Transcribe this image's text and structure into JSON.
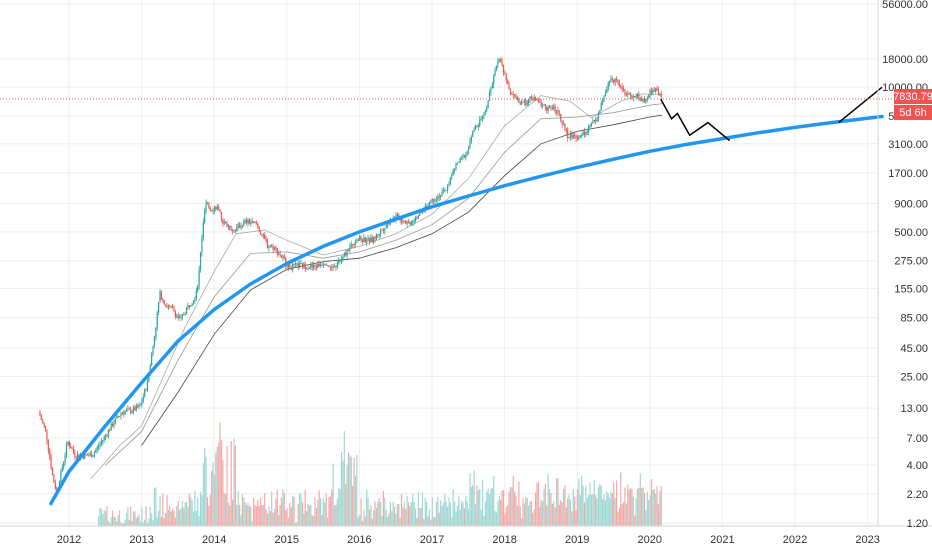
{
  "chart_data": {
    "type": "candlestick",
    "y_scale": "log",
    "grid": true,
    "ylim": [
      1.0,
      56000.0
    ],
    "y_ticks": [
      "56000.00",
      "18000.00",
      "10000.00",
      "5500.00",
      "3100.00",
      "1700.00",
      "900.00",
      "500.00",
      "275.00",
      "155.00",
      "85.00",
      "45.00",
      "25.00",
      "13.00",
      "7.00",
      "4.00",
      "2.20",
      "1.20"
    ],
    "x_ticks": [
      "2012",
      "2013",
      "2014",
      "2015",
      "2016",
      "2017",
      "2018",
      "2019",
      "2020",
      "2021",
      "2022",
      "2023"
    ],
    "price_label": "7830.79",
    "countdown_label": "5d 6h",
    "current_price": 7830.79,
    "colors": {
      "up": "#26a69a",
      "down": "#ef5350",
      "trend": "#2196f3",
      "projection": "#000000",
      "ma": "#888888",
      "price_line": "#ef5350"
    },
    "price_path": [
      [
        2011.6,
        12
      ],
      [
        2011.7,
        8
      ],
      [
        2011.8,
        3
      ],
      [
        2011.85,
        2.3
      ],
      [
        2011.95,
        4.5
      ],
      [
        2012.0,
        6.5
      ],
      [
        2012.1,
        5
      ],
      [
        2012.2,
        4.8
      ],
      [
        2012.35,
        5
      ],
      [
        2012.5,
        7
      ],
      [
        2012.65,
        10
      ],
      [
        2012.75,
        12
      ],
      [
        2012.9,
        12.5
      ],
      [
        2013.0,
        13.5
      ],
      [
        2013.1,
        22
      ],
      [
        2013.2,
        60
      ],
      [
        2013.27,
        140
      ],
      [
        2013.35,
        110
      ],
      [
        2013.45,
        100
      ],
      [
        2013.55,
        80
      ],
      [
        2013.65,
        105
      ],
      [
        2013.75,
        130
      ],
      [
        2013.8,
        180
      ],
      [
        2013.85,
        450
      ],
      [
        2013.9,
        900
      ],
      [
        2013.97,
        800
      ],
      [
        2014.05,
        850
      ],
      [
        2014.15,
        600
      ],
      [
        2014.3,
        520
      ],
      [
        2014.45,
        620
      ],
      [
        2014.6,
        590
      ],
      [
        2014.75,
        380
      ],
      [
        2014.85,
        360
      ],
      [
        2014.95,
        300
      ],
      [
        2015.05,
        240
      ],
      [
        2015.2,
        250
      ],
      [
        2015.4,
        240
      ],
      [
        2015.55,
        270
      ],
      [
        2015.65,
        230
      ],
      [
        2015.8,
        300
      ],
      [
        2015.9,
        380
      ],
      [
        2016.0,
        430
      ],
      [
        2016.2,
        420
      ],
      [
        2016.45,
        650
      ],
      [
        2016.55,
        680
      ],
      [
        2016.7,
        600
      ],
      [
        2016.85,
        730
      ],
      [
        2017.0,
        950
      ],
      [
        2017.2,
        1150
      ],
      [
        2017.35,
        2000
      ],
      [
        2017.5,
        2600
      ],
      [
        2017.6,
        4200
      ],
      [
        2017.75,
        5800
      ],
      [
        2017.85,
        11000
      ],
      [
        2017.95,
        19000
      ],
      [
        2018.0,
        14000
      ],
      [
        2018.1,
        9000
      ],
      [
        2018.25,
        7000
      ],
      [
        2018.4,
        8000
      ],
      [
        2018.6,
        6500
      ],
      [
        2018.75,
        6300
      ],
      [
        2018.88,
        3700
      ],
      [
        2019.0,
        3600
      ],
      [
        2019.15,
        4000
      ],
      [
        2019.3,
        5500
      ],
      [
        2019.45,
        11000
      ],
      [
        2019.55,
        12000
      ],
      [
        2019.7,
        8500
      ],
      [
        2019.85,
        8300
      ],
      [
        2019.95,
        7300
      ],
      [
        2020.05,
        9600
      ],
      [
        2020.12,
        9800
      ],
      [
        2020.17,
        7830.79
      ]
    ],
    "trend_curve": [
      [
        2011.75,
        1.8
      ],
      [
        2012.0,
        3.5
      ],
      [
        2012.5,
        9
      ],
      [
        2013.0,
        22
      ],
      [
        2013.5,
        52
      ],
      [
        2014.0,
        100
      ],
      [
        2014.5,
        170
      ],
      [
        2015.0,
        260
      ],
      [
        2015.5,
        370
      ],
      [
        2016.0,
        500
      ],
      [
        2016.5,
        650
      ],
      [
        2017.0,
        840
      ],
      [
        2017.5,
        1050
      ],
      [
        2018.0,
        1300
      ],
      [
        2018.5,
        1580
      ],
      [
        2019.0,
        1900
      ],
      [
        2019.5,
        2250
      ],
      [
        2020.0,
        2650
      ],
      [
        2020.5,
        3050
      ],
      [
        2021.0,
        3450
      ],
      [
        2021.5,
        3900
      ],
      [
        2022.0,
        4350
      ],
      [
        2022.5,
        4800
      ],
      [
        2023.0,
        5250
      ],
      [
        2023.2,
        5450
      ]
    ],
    "projection": [
      [
        2020.15,
        7830
      ],
      [
        2020.3,
        5200
      ],
      [
        2020.38,
        5800
      ],
      [
        2020.55,
        3700
      ],
      [
        2020.8,
        4800
      ],
      [
        2021.1,
        3300
      ]
    ],
    "projection_2": [
      [
        2022.6,
        4800
      ],
      [
        2023.2,
        10000
      ]
    ],
    "ma_fast": [
      [
        2012.3,
        3
      ],
      [
        2012.7,
        6
      ],
      [
        2013.0,
        9
      ],
      [
        2013.3,
        25
      ],
      [
        2013.6,
        70
      ],
      [
        2014.0,
        220
      ],
      [
        2014.3,
        480
      ],
      [
        2014.7,
        520
      ],
      [
        2015.0,
        420
      ],
      [
        2015.5,
        310
      ],
      [
        2016.0,
        370
      ],
      [
        2016.5,
        480
      ],
      [
        2017.0,
        720
      ],
      [
        2017.5,
        1500
      ],
      [
        2018.0,
        4500
      ],
      [
        2018.5,
        8400
      ],
      [
        2018.9,
        7500
      ],
      [
        2019.2,
        5300
      ],
      [
        2019.6,
        7500
      ],
      [
        2019.9,
        8700
      ],
      [
        2020.17,
        8600
      ]
    ],
    "ma_slow": [
      [
        2013.0,
        6
      ],
      [
        2013.5,
        18
      ],
      [
        2014.0,
        60
      ],
      [
        2014.5,
        150
      ],
      [
        2015.0,
        230
      ],
      [
        2015.5,
        270
      ],
      [
        2016.0,
        290
      ],
      [
        2016.5,
        360
      ],
      [
        2017.0,
        480
      ],
      [
        2017.5,
        750
      ],
      [
        2018.0,
        1600
      ],
      [
        2018.5,
        3100
      ],
      [
        2019.0,
        4000
      ],
      [
        2019.5,
        4600
      ],
      [
        2020.0,
        5400
      ],
      [
        2020.17,
        5600
      ]
    ],
    "ma_mid": [
      [
        2012.5,
        4
      ],
      [
        2013.0,
        8
      ],
      [
        2013.5,
        35
      ],
      [
        2014.0,
        130
      ],
      [
        2014.5,
        320
      ],
      [
        2015.0,
        330
      ],
      [
        2015.5,
        290
      ],
      [
        2016.0,
        330
      ],
      [
        2016.5,
        420
      ],
      [
        2017.0,
        580
      ],
      [
        2017.5,
        1000
      ],
      [
        2018.0,
        2600
      ],
      [
        2018.5,
        5200
      ],
      [
        2019.0,
        5400
      ],
      [
        2019.5,
        5900
      ],
      [
        2020.0,
        6900
      ],
      [
        2020.17,
        7100
      ]
    ]
  }
}
